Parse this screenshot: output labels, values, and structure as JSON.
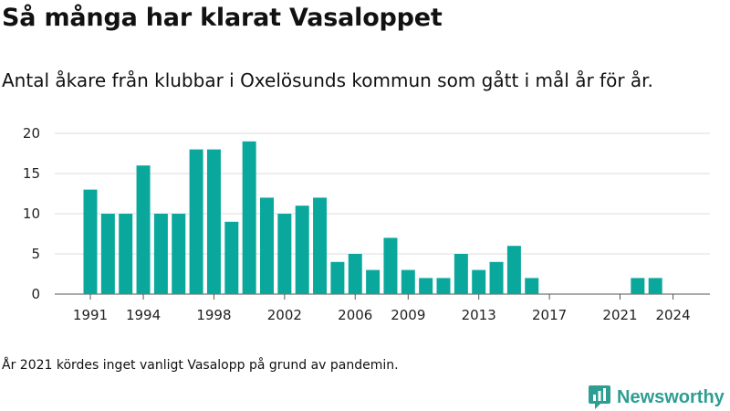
{
  "title": "Så många har klarat Vasaloppet",
  "subtitle": "Antal åkare från klubbar i Oxelösunds kommun som gått i mål år för år.",
  "footnote": "År 2021 kördes inget vanligt Vasalopp på grund av pandemin.",
  "brand": {
    "name": "Newsworthy",
    "color": "#2e9e93"
  },
  "chart_data": {
    "type": "bar",
    "x": [
      1991,
      1992,
      1993,
      1994,
      1995,
      1996,
      1997,
      1998,
      1999,
      2000,
      2001,
      2002,
      2003,
      2004,
      2005,
      2006,
      2007,
      2008,
      2009,
      2010,
      2011,
      2012,
      2013,
      2014,
      2015,
      2016,
      2017,
      2018,
      2019,
      2020,
      2021,
      2022,
      2023,
      2024
    ],
    "values": [
      13,
      10,
      10,
      16,
      10,
      10,
      18,
      18,
      9,
      19,
      12,
      10,
      11,
      12,
      4,
      5,
      3,
      7,
      3,
      2,
      2,
      5,
      3,
      4,
      6,
      2,
      0,
      0,
      0,
      0,
      0,
      2,
      2,
      0
    ],
    "xticks": [
      1991,
      1994,
      1998,
      2002,
      2006,
      2009,
      2013,
      2017,
      2021,
      2024
    ],
    "yticks": [
      0,
      5,
      10,
      15,
      20
    ],
    "ylim": [
      0,
      20
    ],
    "bar_color": "#0aa89c",
    "grid": true
  }
}
